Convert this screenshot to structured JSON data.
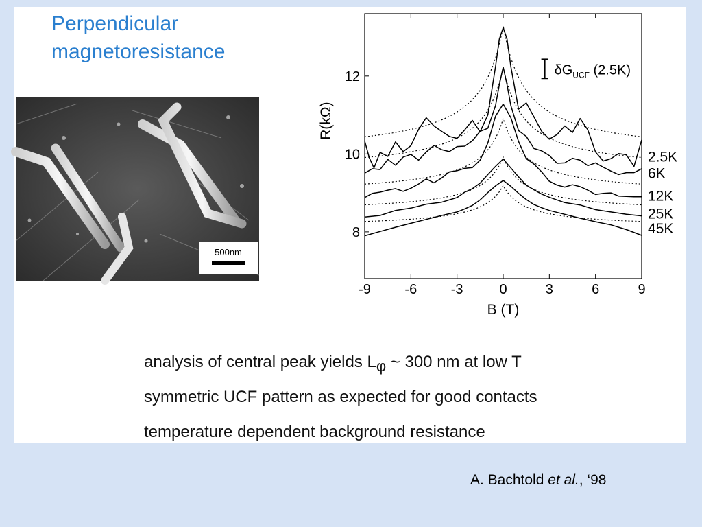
{
  "slide": {
    "title_line1": "Perpendicular",
    "title_line2": "magnetoresistance",
    "bullets": [
      {
        "pre": "analysis of central peak yields L",
        "sub": "φ",
        "post": " ~ 300 nm at low T"
      },
      {
        "text": "symmetric UCF pattern as expected for good contacts"
      },
      {
        "text": "temperature dependent background resistance"
      }
    ],
    "citation": {
      "author": "A. Bachtold ",
      "etal": "et al.",
      "year": ", ‘98"
    },
    "sem_image": {
      "scale_label": "500nm"
    }
  },
  "chart_data": {
    "type": "line",
    "xlabel": "B (T)",
    "ylabel": "R(kΩ)",
    "xlim": [
      -9,
      9
    ],
    "ylim": [
      6.8,
      13.6
    ],
    "xticks": [
      -9,
      -6,
      -3,
      0,
      3,
      6,
      9
    ],
    "yticks": [
      8,
      10,
      12
    ],
    "annotation": {
      "symbol": "δG",
      "sub": "UCF",
      "text": " (2.5K)",
      "bar_y_range": [
        11.94,
        12.43
      ]
    },
    "curves": [
      {
        "label": "2.5K",
        "fit": {
          "base": 9.96,
          "amp": 3.33,
          "alpha": 0.66
        },
        "x": [
          -9,
          -8.7,
          -8.4,
          -8,
          -7.5,
          -7,
          -6.5,
          -6,
          -5.5,
          -5,
          -4.5,
          -4,
          -3.5,
          -3,
          -2.5,
          -2,
          -1.5,
          -1,
          -0.5,
          -0.25,
          0,
          0.25,
          0.5,
          1,
          1.5,
          2,
          2.5,
          3,
          3.5,
          4,
          4.5,
          5,
          5.5,
          6,
          6.5,
          7,
          7.5,
          8,
          8.5,
          9
        ],
        "y": [
          10.33,
          9.9,
          9.64,
          10.04,
          9.94,
          10.31,
          10.06,
          10.21,
          10.63,
          10.93,
          10.72,
          10.58,
          10.45,
          10.4,
          10.62,
          10.86,
          10.57,
          11.0,
          12.24,
          12.95,
          13.24,
          12.95,
          12.24,
          11.15,
          11.31,
          10.95,
          10.58,
          10.38,
          10.5,
          10.72,
          10.55,
          10.91,
          10.62,
          10.05,
          9.82,
          9.88,
          10.01,
          9.98,
          9.68,
          10.36
        ]
      },
      {
        "label": "6K",
        "fit": {
          "base": 9.54,
          "amp": 2.69,
          "alpha": 0.7
        },
        "x": [
          -9,
          -8.5,
          -8,
          -7.5,
          -7,
          -6.5,
          -6,
          -5.5,
          -5,
          -4.5,
          -4,
          -3.5,
          -3,
          -2.5,
          -2,
          -1.5,
          -1,
          -0.5,
          -0.25,
          0,
          0.25,
          0.5,
          1,
          1.5,
          2,
          2.5,
          3,
          3.5,
          4,
          4.5,
          5,
          5.5,
          6,
          6.5,
          7,
          7.5,
          8,
          8.5,
          9
        ],
        "y": [
          9.51,
          9.62,
          9.6,
          9.86,
          9.71,
          9.92,
          9.99,
          9.84,
          10.05,
          10.22,
          10.11,
          10.06,
          10.19,
          10.2,
          10.34,
          10.58,
          10.66,
          11.24,
          11.78,
          12.23,
          11.78,
          11.24,
          10.6,
          10.45,
          10.14,
          10.08,
          9.96,
          9.76,
          9.77,
          9.89,
          9.84,
          9.7,
          9.77,
          9.66,
          9.56,
          9.47,
          9.52,
          9.52,
          9.62
        ]
      },
      {
        "label": "12K",
        "fit": {
          "base": 8.96,
          "amp": 1.95,
          "alpha": 0.7
        },
        "x": [
          -9,
          -8.5,
          -8,
          -7.5,
          -7,
          -6.5,
          -6,
          -5.5,
          -5,
          -4.5,
          -4,
          -3.5,
          -3,
          -2.5,
          -2,
          -1.5,
          -1,
          -0.5,
          0,
          0.5,
          1,
          1.5,
          2,
          2.5,
          3,
          3.5,
          4,
          4.5,
          5,
          5.5,
          6,
          6.5,
          7,
          7.5,
          8,
          8.5,
          9
        ],
        "y": [
          8.88,
          8.99,
          9.02,
          9.07,
          9.11,
          9.04,
          9.12,
          9.23,
          9.36,
          9.26,
          9.38,
          9.54,
          9.57,
          9.63,
          9.65,
          9.84,
          10.28,
          10.97,
          11.28,
          10.93,
          10.32,
          9.88,
          9.74,
          9.54,
          9.3,
          9.2,
          9.15,
          9.21,
          9.16,
          9.07,
          8.96,
          8.99,
          9.0,
          8.92,
          8.91,
          8.9,
          8.9
        ]
      },
      {
        "label": "25K",
        "fit": {
          "base": 8.5,
          "amp": 1.42,
          "alpha": 0.7
        },
        "x": [
          -9,
          -8,
          -7,
          -6,
          -5,
          -4,
          -3,
          -2.5,
          -2,
          -1.5,
          -1,
          -0.5,
          0,
          0.5,
          1,
          1.5,
          2,
          2.5,
          3,
          4,
          5,
          6,
          7,
          8,
          9
        ],
        "y": [
          8.38,
          8.42,
          8.55,
          8.61,
          8.71,
          8.76,
          8.88,
          9.02,
          9.11,
          9.25,
          9.47,
          9.68,
          9.87,
          9.64,
          9.41,
          9.2,
          9.08,
          8.97,
          8.89,
          8.75,
          8.69,
          8.57,
          8.51,
          8.45,
          8.41
        ]
      },
      {
        "label": "45K",
        "fit": {
          "base": 8.12,
          "amp": 1.07,
          "alpha": 0.7
        },
        "x": [
          -9,
          -8,
          -7,
          -6,
          -5,
          -4,
          -3,
          -2.5,
          -2,
          -1.5,
          -1,
          -0.5,
          0,
          0.5,
          1,
          1.5,
          2,
          2.5,
          3,
          4,
          5,
          6,
          7,
          8,
          9
        ],
        "y": [
          7.9,
          8.01,
          8.12,
          8.22,
          8.32,
          8.42,
          8.51,
          8.59,
          8.68,
          8.82,
          9.01,
          9.18,
          9.32,
          9.17,
          8.99,
          8.83,
          8.7,
          8.62,
          8.55,
          8.45,
          8.35,
          8.26,
          8.18,
          8.06,
          7.91
        ]
      }
    ]
  }
}
